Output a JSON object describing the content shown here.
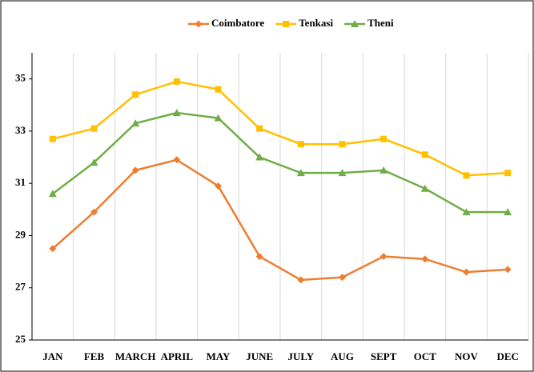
{
  "chart_data": {
    "type": "line",
    "categories": [
      "JAN",
      "FEB",
      "MARCH",
      "APRIL",
      "MAY",
      "JUNE",
      "JULY",
      "AUG",
      "SEPT",
      "OCT",
      "NOV",
      "DEC"
    ],
    "series": [
      {
        "name": "Coimbatore",
        "color": "#ed7d31",
        "marker": "diamond",
        "values": [
          28.5,
          29.9,
          31.5,
          31.9,
          30.9,
          28.2,
          27.3,
          27.4,
          28.2,
          28.1,
          27.6,
          27.7
        ]
      },
      {
        "name": "Tenkasi",
        "color": "#ffc000",
        "marker": "square",
        "values": [
          32.7,
          33.1,
          34.4,
          34.9,
          34.6,
          33.1,
          32.5,
          32.5,
          32.7,
          32.1,
          31.3,
          31.4
        ]
      },
      {
        "name": "Theni",
        "color": "#70ad47",
        "marker": "triangle",
        "values": [
          30.6,
          31.8,
          33.3,
          33.7,
          33.5,
          32.0,
          31.4,
          31.4,
          31.5,
          30.8,
          29.9,
          29.9
        ]
      }
    ],
    "ylim": [
      25,
      36
    ],
    "yticks": [
      25,
      27,
      29,
      31,
      33,
      35
    ],
    "grid": true,
    "legend": "top"
  }
}
